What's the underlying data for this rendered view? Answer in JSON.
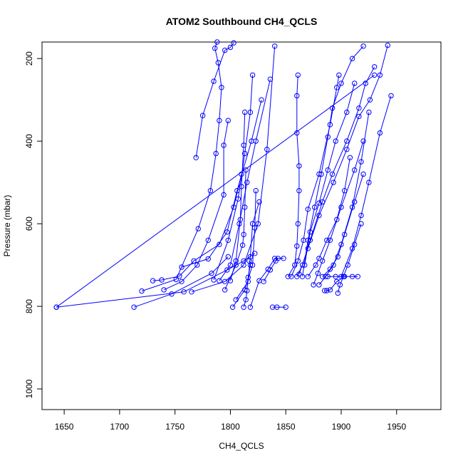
{
  "chart_data": {
    "type": "scatter",
    "title": "ATOM2 Southbound CH4_QCLS",
    "xlabel": "CH4_QCLS",
    "ylabel": "Pressure (mbar)",
    "xlim": [
      1630,
      1990
    ],
    "ylim": [
      1050,
      160
    ],
    "y_axis_reversed": true,
    "x_ticks": [
      1650,
      1700,
      1750,
      1800,
      1850,
      1900,
      1950
    ],
    "y_ticks": [
      200,
      400,
      600,
      800,
      1000
    ],
    "grid": false,
    "legend": "none",
    "color": "#0000ff",
    "marker": "open-circle",
    "lines": true,
    "series": [
      {
        "x": [
          1643,
          1758,
          1797,
          1812,
          1822
        ],
        "y": [
          802,
          765,
          712,
          690,
          672
        ]
      },
      {
        "x": [
          1643,
          1930
        ],
        "y": [
          802,
          240
        ]
      },
      {
        "x": [
          1713,
          1747,
          1783,
          1798
        ],
        "y": [
          802,
          770,
          720,
          680
        ]
      },
      {
        "x": [
          1720,
          1751,
          1771,
          1782,
          1787,
          1790,
          1792,
          1789,
          1786,
          1788
        ],
        "y": [
          763,
          735,
          612,
          520,
          430,
          350,
          270,
          210,
          175,
          160
        ]
      },
      {
        "x": [
          1730,
          1738,
          1754,
          1767,
          1790,
          1803,
          1810
        ],
        "y": [
          738,
          736,
          727,
          690,
          650,
          560,
          480
        ]
      },
      {
        "x": [
          1740,
          1756,
          1770,
          1780,
          1794,
          1794,
          1798
        ],
        "y": [
          760,
          740,
          700,
          640,
          530,
          410,
          350
        ]
      },
      {
        "x": [
          1756,
          1780,
          1797,
          1806,
          1819,
          1828
        ],
        "y": [
          705,
          685,
          620,
          520,
          400,
          300
        ]
      },
      {
        "x": [
          1765,
          1795,
          1812,
          1825,
          1833,
          1840
        ],
        "y": [
          765,
          740,
          700,
          600,
          420,
          170
        ]
      },
      {
        "x": [
          1769,
          1775,
          1785,
          1795,
          1800,
          1803
        ],
        "y": [
          440,
          338,
          255,
          180,
          173,
          162
        ]
      },
      {
        "x": [
          1785,
          1798,
          1807,
          1813,
          1818,
          1820
        ],
        "y": [
          736,
          640,
          540,
          430,
          330,
          240
        ]
      },
      {
        "x": [
          1790,
          1800,
          1808,
          1815,
          1823,
          1836
        ],
        "y": [
          738,
          700,
          600,
          500,
          400,
          250
        ]
      },
      {
        "x": [
          1795,
          1805,
          1811,
          1812,
          1813,
          1814
        ],
        "y": [
          760,
          700,
          652,
          626,
          560,
          470
        ]
      },
      {
        "x": [
          1800,
          1805,
          1809,
          1810,
          1812,
          1813
        ],
        "y": [
          738,
          690,
          590,
          510,
          410,
          330
        ]
      },
      {
        "x": [
          1802,
          1813,
          1820,
          1822,
          1823
        ],
        "y": [
          802,
          760,
          700,
          610,
          520
        ]
      },
      {
        "x": [
          1805,
          1816,
          1818,
          1820,
          1826
        ],
        "y": [
          784,
          740,
          680,
          600,
          547
        ]
      },
      {
        "x": [
          1812,
          1814,
          1815,
          1816,
          1818,
          1817
        ],
        "y": [
          802,
          784,
          762,
          730,
          700,
          690
        ]
      },
      {
        "x": [
          1818,
          1826,
          1834,
          1840,
          1848
        ],
        "y": [
          802,
          738,
          710,
          684,
          684
        ]
      },
      {
        "x": [
          1830,
          1836,
          1841,
          1843
        ],
        "y": [
          740,
          712,
          690,
          684
        ]
      },
      {
        "x": [
          1838,
          1842,
          1850
        ],
        "y": [
          802,
          802,
          802
        ]
      },
      {
        "x": [
          1852,
          1858,
          1860,
          1861,
          1862,
          1862,
          1860,
          1860,
          1861
        ],
        "y": [
          728,
          700,
          654,
          600,
          520,
          460,
          380,
          290,
          240
        ]
      },
      {
        "x": [
          1855,
          1861,
          1866,
          1870,
          1880,
          1890,
          1896,
          1898
        ],
        "y": [
          728,
          690,
          640,
          565,
          480,
          360,
          270,
          240
        ]
      },
      {
        "x": [
          1860,
          1865,
          1872,
          1883,
          1892,
          1905,
          1916,
          1922,
          1930
        ],
        "y": [
          728,
          700,
          640,
          547,
          480,
          400,
          320,
          260,
          220
        ]
      },
      {
        "x": [
          1862,
          1870,
          1880,
          1893,
          1905,
          1916,
          1926,
          1935,
          1942
        ],
        "y": [
          722,
          660,
          580,
          500,
          420,
          340,
          300,
          240,
          168
        ]
      },
      {
        "x": [
          1865,
          1870,
          1876,
          1882,
          1888,
          1892,
          1900,
          1910,
          1920
        ],
        "y": [
          728,
          640,
          560,
          480,
          390,
          320,
          260,
          200,
          170
        ]
      },
      {
        "x": [
          1867,
          1872,
          1880,
          1888,
          1895,
          1905,
          1912
        ],
        "y": [
          700,
          620,
          550,
          470,
          400,
          330,
          260
        ]
      },
      {
        "x": [
          1870,
          1877,
          1880,
          1887,
          1896,
          1903,
          1908
        ],
        "y": [
          728,
          700,
          684,
          640,
          590,
          520,
          440
        ]
      },
      {
        "x": [
          1875,
          1879,
          1883,
          1890,
          1900,
          1912,
          1920
        ],
        "y": [
          748,
          720,
          690,
          640,
          560,
          470,
          400
        ]
      },
      {
        "x": [
          1880,
          1886,
          1893,
          1900,
          1910,
          1918,
          1925
        ],
        "y": [
          748,
          728,
          700,
          650,
          560,
          450,
          330
        ]
      },
      {
        "x": [
          1883,
          1890,
          1897,
          1903,
          1912,
          1920
        ],
        "y": [
          728,
          710,
          680,
          626,
          547,
          480
        ]
      },
      {
        "x": [
          1885,
          1887,
          1890,
          1896,
          1903
        ],
        "y": [
          762,
          762,
          760,
          740,
          728
        ]
      },
      {
        "x": [
          1888,
          1895,
          1902,
          1910,
          1915
        ],
        "y": [
          728,
          728,
          728,
          728,
          728
        ]
      },
      {
        "x": [
          1897,
          1899,
          1902,
          1906,
          1912,
          1918
        ],
        "y": [
          768,
          748,
          728,
          700,
          650,
          600
        ]
      },
      {
        "x": [
          1900,
          1910,
          1918,
          1925,
          1935,
          1945
        ],
        "y": [
          728,
          660,
          580,
          500,
          380,
          290
        ]
      }
    ]
  }
}
